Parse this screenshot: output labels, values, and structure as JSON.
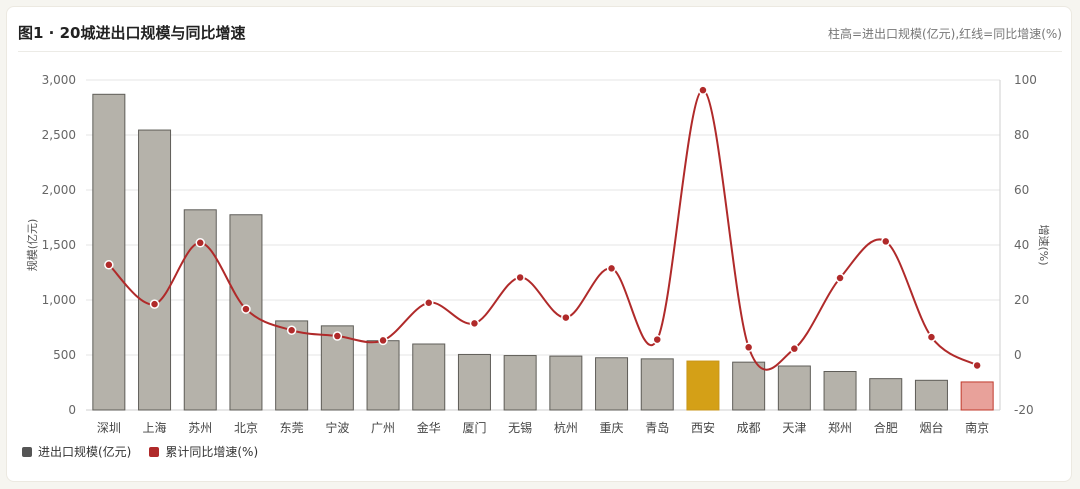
{
  "header": {
    "title": "图1 · 20城进出口规模与同比增速",
    "note": "柱高=进出口规模(亿元),红线=同比增速(%)"
  },
  "legend": [
    {
      "label": "进出口规模(亿元)",
      "color": "#555555"
    },
    {
      "label": "累计同比增速(%)",
      "color": "#b02a2a"
    }
  ],
  "colors": {
    "bar": "#b5b2aa",
    "bar_stroke": "#5f5d58",
    "highlight_xian": "#d4a017",
    "highlight_nanjing": "#e8a19a",
    "line": "#b02a2a",
    "grid": "#e6e6e6"
  },
  "chart_data": {
    "type": "bar",
    "categories": [
      "深圳",
      "上海",
      "苏州",
      "北京",
      "东莞",
      "宁波",
      "广州",
      "金华",
      "厦门",
      "无锡",
      "杭州",
      "重庆",
      "青岛",
      "西安",
      "成都",
      "天津",
      "郑州",
      "合肥",
      "烟台",
      "南京"
    ],
    "series": [
      {
        "name": "进出口规模(亿元)",
        "type": "bar",
        "axis": "left",
        "values": [
          2870,
          2545,
          1820,
          1775,
          810,
          765,
          630,
          600,
          505,
          495,
          490,
          475,
          465,
          445,
          435,
          400,
          350,
          285,
          270,
          255
        ]
      },
      {
        "name": "累计同比增速(%)",
        "type": "line",
        "axis": "right",
        "values": [
          32.8,
          18.5,
          40.8,
          16.7,
          9.0,
          6.9,
          5.3,
          19.0,
          11.5,
          28.2,
          13.6,
          31.5,
          5.6,
          96.3,
          2.8,
          2.3,
          28.0,
          41.3,
          6.5,
          -3.8
        ]
      }
    ],
    "ylabel": "规模(亿元)",
    "y2label": "增速(%)",
    "ylim": [
      0,
      3000
    ],
    "y2lim": [
      -20,
      100
    ],
    "yticks": [
      "0",
      "500",
      "1,000",
      "1,500",
      "2,000",
      "2,500",
      "3,000"
    ],
    "y2ticks": [
      "-20",
      "0",
      "20",
      "40",
      "60",
      "80",
      "100"
    ],
    "grid": true,
    "legend_position": "bottom-left"
  }
}
